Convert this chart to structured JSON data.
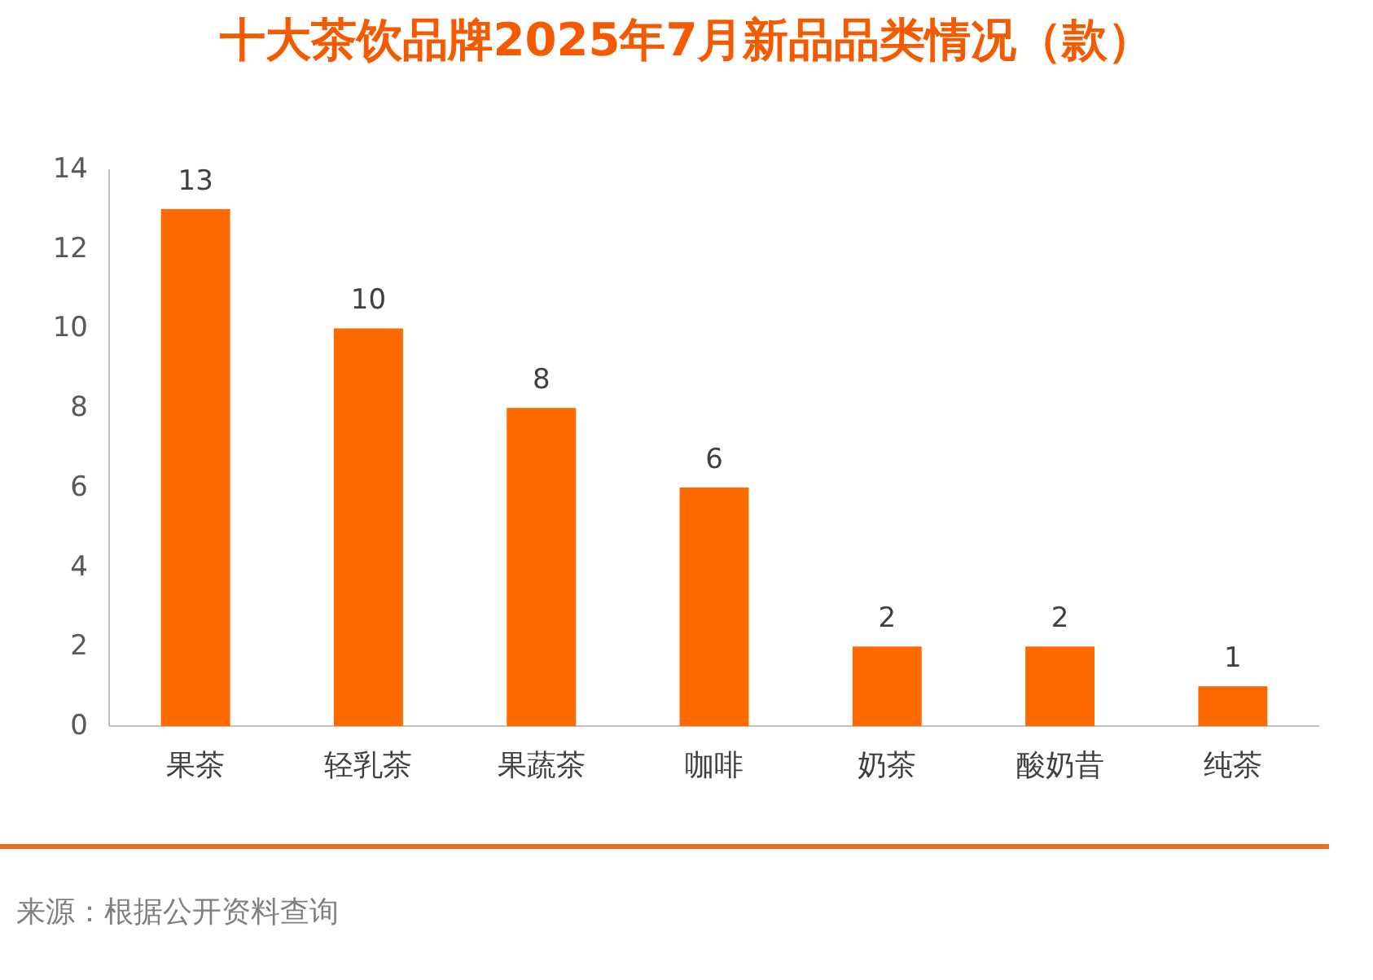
{
  "chart_data": {
    "type": "bar",
    "title": "十大茶饮品牌2025年7月新品品类情况（款）",
    "categories": [
      "果茶",
      "轻乳茶",
      "果蔬茶",
      "咖啡",
      "奶茶",
      "酸奶昔",
      "纯茶"
    ],
    "values": [
      13,
      10,
      8,
      6,
      2,
      2,
      1
    ],
    "color": "#ff6a00",
    "ylim": [
      0,
      14
    ],
    "yticks": [
      0,
      2,
      4,
      6,
      8,
      10,
      12,
      14
    ],
    "data_labels": true,
    "annotations": [
      "来源：根据公开资料查询"
    ]
  }
}
